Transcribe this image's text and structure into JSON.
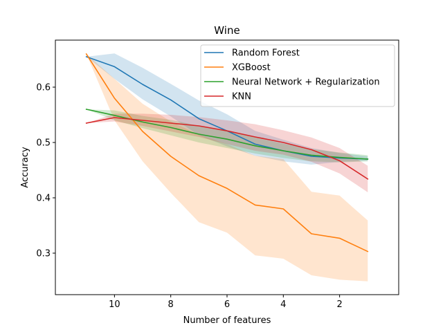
{
  "chart_data": {
    "type": "line",
    "title": "Wine",
    "xlabel": "Number of features",
    "ylabel": "Accuracy",
    "x": [
      11,
      10,
      9,
      8,
      7,
      6,
      5,
      4,
      3,
      2,
      1
    ],
    "xlim": [
      12.1,
      -0.1
    ],
    "ylim": [
      0.225,
      0.685
    ],
    "xticks": [
      10,
      8,
      6,
      4,
      2
    ],
    "xtick_labels": [
      "10",
      "8",
      "6",
      "4",
      "2"
    ],
    "yticks": [
      0.3,
      0.4,
      0.5,
      0.6
    ],
    "ytick_labels": [
      "0.3",
      "0.4",
      "0.5",
      "0.6"
    ],
    "legend_position": "top-right",
    "grid": false,
    "series": [
      {
        "name": "Random Forest",
        "color": "#1f77b4",
        "values": [
          0.655,
          0.637,
          0.605,
          0.577,
          0.543,
          0.521,
          0.497,
          0.485,
          0.475,
          0.472,
          0.47
        ],
        "lower": [
          0.655,
          0.615,
          0.578,
          0.547,
          0.513,
          0.493,
          0.476,
          0.466,
          0.46,
          0.465,
          0.467
        ],
        "upper": [
          0.655,
          0.661,
          0.635,
          0.606,
          0.576,
          0.551,
          0.521,
          0.505,
          0.49,
          0.481,
          0.475
        ]
      },
      {
        "name": "XGBoost",
        "color": "#ff7f0e",
        "values": [
          0.66,
          0.58,
          0.52,
          0.475,
          0.44,
          0.417,
          0.387,
          0.38,
          0.335,
          0.327,
          0.303
        ],
        "lower": [
          0.66,
          0.54,
          0.466,
          0.409,
          0.356,
          0.337,
          0.296,
          0.29,
          0.26,
          0.252,
          0.249
        ],
        "upper": [
          0.66,
          0.615,
          0.57,
          0.538,
          0.514,
          0.497,
          0.476,
          0.47,
          0.411,
          0.404,
          0.359
        ]
      },
      {
        "name": "Neural Network + Regularization",
        "color": "#2ca02c",
        "values": [
          0.56,
          0.549,
          0.537,
          0.527,
          0.515,
          0.506,
          0.494,
          0.485,
          0.477,
          0.473,
          0.47
        ],
        "lower": [
          0.56,
          0.54,
          0.526,
          0.513,
          0.5,
          0.49,
          0.48,
          0.472,
          0.466,
          0.464,
          0.466
        ],
        "upper": [
          0.56,
          0.558,
          0.548,
          0.541,
          0.53,
          0.522,
          0.509,
          0.498,
          0.488,
          0.482,
          0.477
        ]
      },
      {
        "name": "KNN",
        "color": "#d62728",
        "values": [
          0.535,
          0.545,
          0.54,
          0.535,
          0.53,
          0.521,
          0.51,
          0.5,
          0.487,
          0.467,
          0.434
        ],
        "lower": [
          0.535,
          0.538,
          0.53,
          0.52,
          0.51,
          0.497,
          0.485,
          0.478,
          0.465,
          0.444,
          0.41
        ],
        "upper": [
          0.535,
          0.552,
          0.552,
          0.55,
          0.546,
          0.54,
          0.533,
          0.522,
          0.509,
          0.49,
          0.458
        ]
      }
    ]
  }
}
